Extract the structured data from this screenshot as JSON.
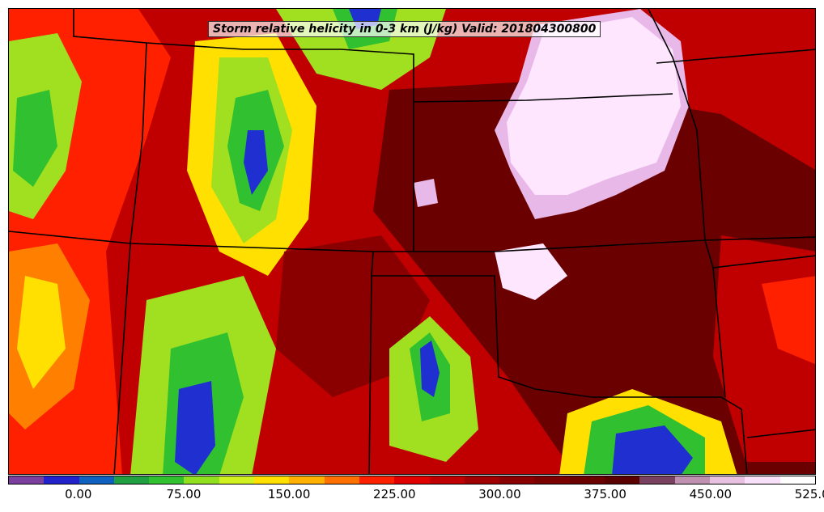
{
  "title": "Storm relative helicity in 0-3 km (J/kg) Valid: 2018043008​00",
  "colorbar": {
    "colors": [
      "#7b3f9e",
      "#2222cc",
      "#1060c0",
      "#20a040",
      "#30c030",
      "#90e020",
      "#d0f020",
      "#ffe000",
      "#ffb000",
      "#ff7000",
      "#ff2000",
      "#e00000",
      "#c00000",
      "#a00000",
      "#8a0000",
      "#7a0000",
      "#6a0000",
      "#5a0000",
      "#7a4060",
      "#c090b0",
      "#e8c0e0",
      "#f8e0f8",
      "#ffffff"
    ],
    "tick_labels": [
      "0.00",
      "75.00",
      "150.00",
      "225.00",
      "300.00",
      "375.00",
      "450.00",
      "525.00"
    ]
  },
  "map": {
    "field_colors": {
      "white": "#ffe6ff",
      "pink": "#e8b8e8",
      "mauve": "#8a5070",
      "darkred": "#6a0000",
      "red": "#c00000",
      "brightred": "#ff2000",
      "orange": "#ff8000",
      "yellow": "#ffe000",
      "lime": "#a0e020",
      "green": "#30c030",
      "blue": "#2030d0"
    }
  }
}
